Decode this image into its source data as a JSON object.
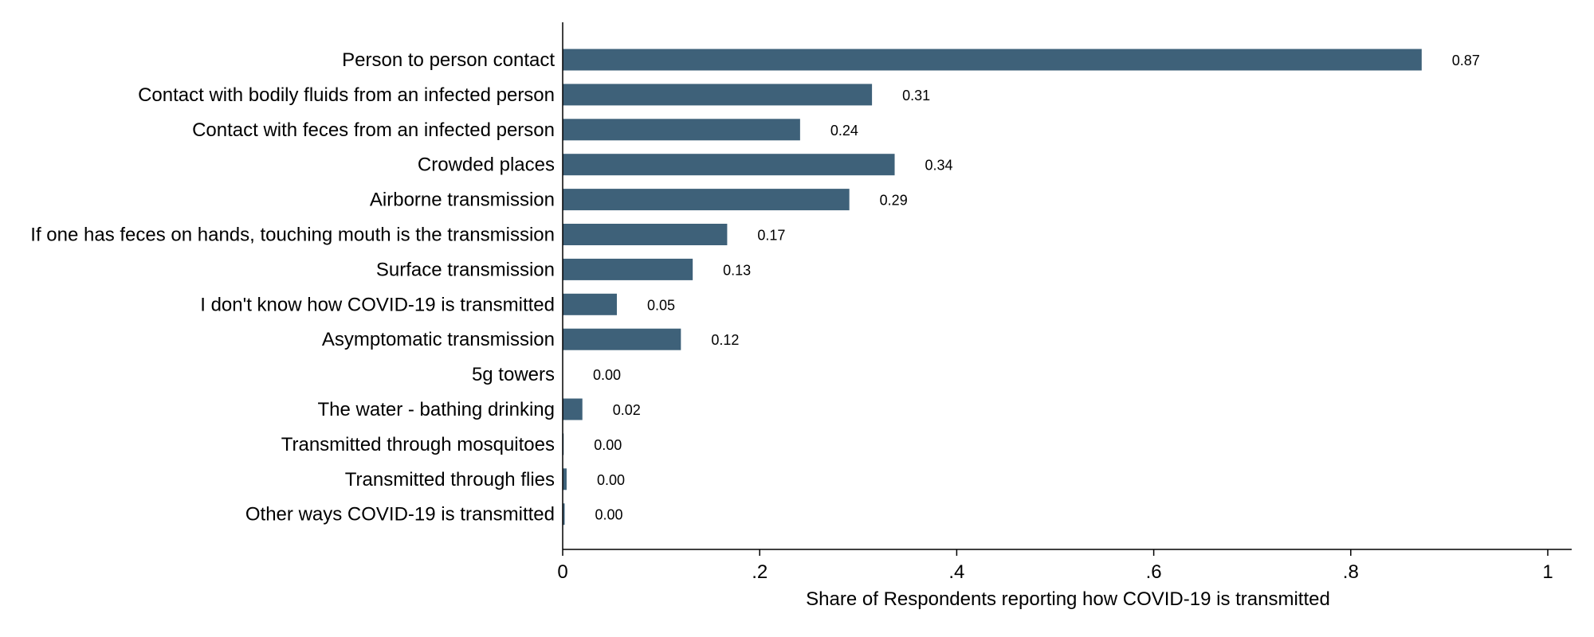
{
  "chart_data": {
    "type": "bar",
    "orientation": "horizontal",
    "title": "",
    "xlabel": "Share of Respondents reporting how COVID-19 is transmitted",
    "ylabel": "",
    "xlim": [
      0,
      1
    ],
    "xticks": [
      0,
      0.2,
      0.4,
      0.6,
      0.8,
      1
    ],
    "xtick_labels": [
      "0",
      ".2",
      ".4",
      ".6",
      ".8",
      "1"
    ],
    "grid": false,
    "legend": "none",
    "bar_color": "#3e6179",
    "categories": [
      "Person to person contact",
      "Contact with bodily fluids from an infected person",
      "Contact with feces from an infected person",
      "Crowded places",
      "Airborne transmission",
      "If one has feces on hands, touching mouth is the transmission",
      "Surface transmission",
      "I don't know how COVID-19 is transmitted",
      "Asymptomatic transmission",
      "5g towers",
      "The water - bathing drinking",
      "Transmitted through mosquitoes",
      "Transmitted through flies",
      "Other ways COVID-19 is transmitted"
    ],
    "values": [
      0.872,
      0.314,
      0.241,
      0.337,
      0.291,
      0.167,
      0.132,
      0.055,
      0.12,
      0.0,
      0.02,
      0.001,
      0.004,
      0.002
    ],
    "value_labels": [
      "0.87",
      "0.31",
      "0.24",
      "0.34",
      "0.29",
      "0.17",
      "0.13",
      "0.05",
      "0.12",
      "0.00",
      "0.02",
      "0.00",
      "0.00",
      "0.00"
    ]
  }
}
